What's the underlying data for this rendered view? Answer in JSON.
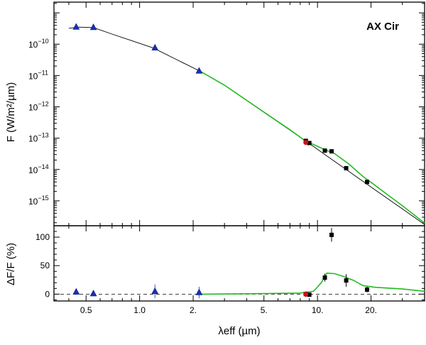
{
  "chart_data": [
    {
      "type": "scatter",
      "panel": "sed",
      "annotation": "AX Cir",
      "ylabel": "F (W/m²/µm)",
      "x_scale": "log",
      "y_scale": "log",
      "xlim": [
        0.33,
        40
      ],
      "ylim": [
        1.6e-16,
        2.2e-09
      ],
      "x_ticks": [
        0.5,
        1.0,
        2.0,
        5.0,
        10.0,
        20.0
      ],
      "y_tick_labels": [
        {
          "value": 1e-10,
          "mantissa": "10",
          "exponent": "−10"
        },
        {
          "value": 1e-11,
          "mantissa": "10",
          "exponent": "−11"
        },
        {
          "value": 1e-12,
          "mantissa": "10",
          "exponent": "−12"
        },
        {
          "value": 1e-13,
          "mantissa": "10",
          "exponent": "−13"
        },
        {
          "value": 1e-14,
          "mantissa": "10",
          "exponent": "−14"
        },
        {
          "value": 1e-15,
          "mantissa": "10",
          "exponent": "−15"
        }
      ],
      "series": [
        {
          "marker": "black-line",
          "points": [
            [
              0.4,
              3.2e-10
            ],
            [
              0.45,
              3.5e-10
            ],
            [
              0.55,
              3.4e-10
            ],
            [
              0.7,
              2.1e-10
            ],
            [
              0.9,
              1.3e-10
            ],
            [
              1.2,
              7.5e-11
            ],
            [
              1.6,
              3.3e-11
            ],
            [
              2.2,
              1.35e-11
            ],
            [
              3.0,
              4.9e-12
            ],
            [
              4.0,
              1.6e-12
            ],
            [
              5.0,
              6.7e-13
            ],
            [
              7.0,
              1.8e-13
            ],
            [
              9.0,
              6.7e-14
            ],
            [
              12.0,
              2.12e-14
            ],
            [
              15.0,
              8.7e-15
            ],
            [
              20.0,
              2.75e-15
            ],
            [
              30.0,
              5.5e-16
            ],
            [
              40.0,
              1.75e-16
            ]
          ]
        },
        {
          "marker": "green-line",
          "points": [
            [
              2.2,
              1.35e-11
            ],
            [
              3.0,
              4.9e-12
            ],
            [
              5.0,
              6.8e-13
            ],
            [
              7.0,
              1.85e-13
            ],
            [
              8.5,
              8.3e-14
            ],
            [
              10.0,
              5.5e-14
            ],
            [
              11.0,
              4.3e-14
            ],
            [
              12.5,
              3.2e-14
            ],
            [
              15.0,
              1.5e-14
            ],
            [
              18.0,
              6e-15
            ],
            [
              20.0,
              3.9e-15
            ],
            [
              25.0,
              1.5e-15
            ],
            [
              30.0,
              7e-16
            ],
            [
              40.0,
              1.95e-16
            ]
          ]
        },
        {
          "marker": "blue-triangle",
          "points": [
            [
              0.44,
              3.55e-10
            ],
            [
              0.55,
              3.45e-10
            ],
            [
              1.22,
              7.7e-11
            ],
            [
              2.16,
              1.4e-11
            ]
          ]
        },
        {
          "marker": "black-square",
          "points": [
            [
              8.6,
              8.2e-14
            ],
            [
              9.0,
              7e-14
            ],
            [
              11.0,
              4e-14
            ],
            [
              12.0,
              3.8e-14
            ],
            [
              14.5,
              1.1e-14
            ],
            [
              19.0,
              4e-15
            ]
          ]
        },
        {
          "marker": "red-circle",
          "points": [
            [
              8.6,
              7.3e-14
            ]
          ]
        }
      ]
    },
    {
      "type": "scatter",
      "panel": "residuals",
      "ylabel": "ΔF/F (%)",
      "xlabel": "λeff (µm)",
      "x_scale": "log",
      "xlim": [
        0.33,
        40
      ],
      "ylim": [
        -12,
        120
      ],
      "x_ticks": [
        0.5,
        1.0,
        2.0,
        5.0,
        10.0,
        20.0
      ],
      "x_tick_labels": [
        "0.5",
        "1.0",
        "2.",
        "5.",
        "10.",
        "20."
      ],
      "y_ticks": [
        0,
        50,
        100
      ],
      "y_tick_labels": [
        "0",
        "50",
        "100"
      ],
      "zero_line": "dashed",
      "series": [
        {
          "marker": "green-line",
          "points": [
            [
              2.2,
              0
            ],
            [
              5.0,
              1
            ],
            [
              8.0,
              2
            ],
            [
              9.5,
              5
            ],
            [
              10.5,
              20
            ],
            [
              11.3,
              37
            ],
            [
              12.5,
              36
            ],
            [
              14.0,
              31
            ],
            [
              16.0,
              24
            ],
            [
              18.0,
              15
            ],
            [
              21.0,
              12
            ],
            [
              30.0,
              9
            ],
            [
              40.0,
              5
            ]
          ]
        },
        {
          "marker": "blue-triangle",
          "points": [
            [
              0.44,
              4
            ],
            [
              0.55,
              1
            ],
            [
              1.22,
              5
            ],
            [
              2.16,
              3
            ]
          ],
          "error_bars": [
            4,
            3,
            12,
            10
          ]
        },
        {
          "marker": "black-square",
          "points": [
            [
              8.6,
              0
            ],
            [
              9.0,
              -1
            ],
            [
              11.0,
              29
            ],
            [
              12.0,
              104
            ],
            [
              14.5,
              24
            ],
            [
              19.0,
              8
            ]
          ],
          "error_bars": [
            5,
            3,
            7,
            12,
            11,
            5
          ]
        },
        {
          "marker": "red-circle",
          "points": [
            [
              8.6,
              0
            ]
          ]
        }
      ]
    }
  ]
}
